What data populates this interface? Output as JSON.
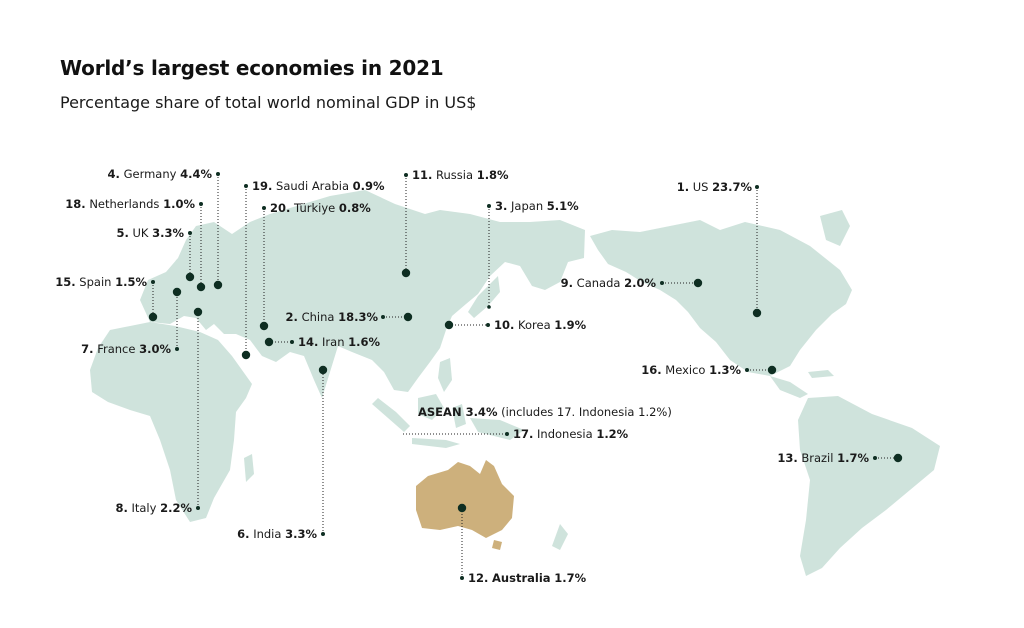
{
  "title": "World’s largest economies in 2021",
  "subtitle": "Percentage share of total world nominal GDP in US$",
  "colors": {
    "land": "#cfe3dc",
    "highlight": "#cdb07c",
    "marker": "#0e2e22"
  },
  "economies": [
    {
      "rank": "1.",
      "country": "US",
      "share": "23.7%"
    },
    {
      "rank": "2.",
      "country": "China",
      "share": "18.3%"
    },
    {
      "rank": "3.",
      "country": "Japan",
      "share": "5.1%"
    },
    {
      "rank": "4.",
      "country": "Germany",
      "share": "4.4%"
    },
    {
      "rank": "5.",
      "country": "UK",
      "share": "3.3%"
    },
    {
      "rank": "6.",
      "country": "India",
      "share": "3.3%"
    },
    {
      "rank": "7.",
      "country": "France",
      "share": "3.0%"
    },
    {
      "rank": "8.",
      "country": "Italy",
      "share": "2.2%"
    },
    {
      "rank": "9.",
      "country": "Canada",
      "share": "2.0%"
    },
    {
      "rank": "10.",
      "country": "Korea",
      "share": "1.9%"
    },
    {
      "rank": "11.",
      "country": "Russia",
      "share": "1.8%"
    },
    {
      "rank": "12.",
      "country": "Australia",
      "share": "1.7%"
    },
    {
      "rank": "13.",
      "country": "Brazil",
      "share": "1.7%"
    },
    {
      "rank": "14.",
      "country": "Iran",
      "share": "1.6%"
    },
    {
      "rank": "15.",
      "country": "Spain",
      "share": "1.5%"
    },
    {
      "rank": "16.",
      "country": "Mexico",
      "share": "1.3%"
    },
    {
      "rank": "17.",
      "country": "Indonesia",
      "share": "1.2%"
    },
    {
      "rank": "18.",
      "country": "Netherlands",
      "share": "1.0%"
    },
    {
      "rank": "19.",
      "country": "Saudi Arabia",
      "share": "0.9%"
    },
    {
      "rank": "20.",
      "country": "Türkiye",
      "share": "0.8%"
    }
  ],
  "asean": {
    "label": "ASEAN 3.4%",
    "note": "(includes 17. Indonesia 1.2%)"
  }
}
